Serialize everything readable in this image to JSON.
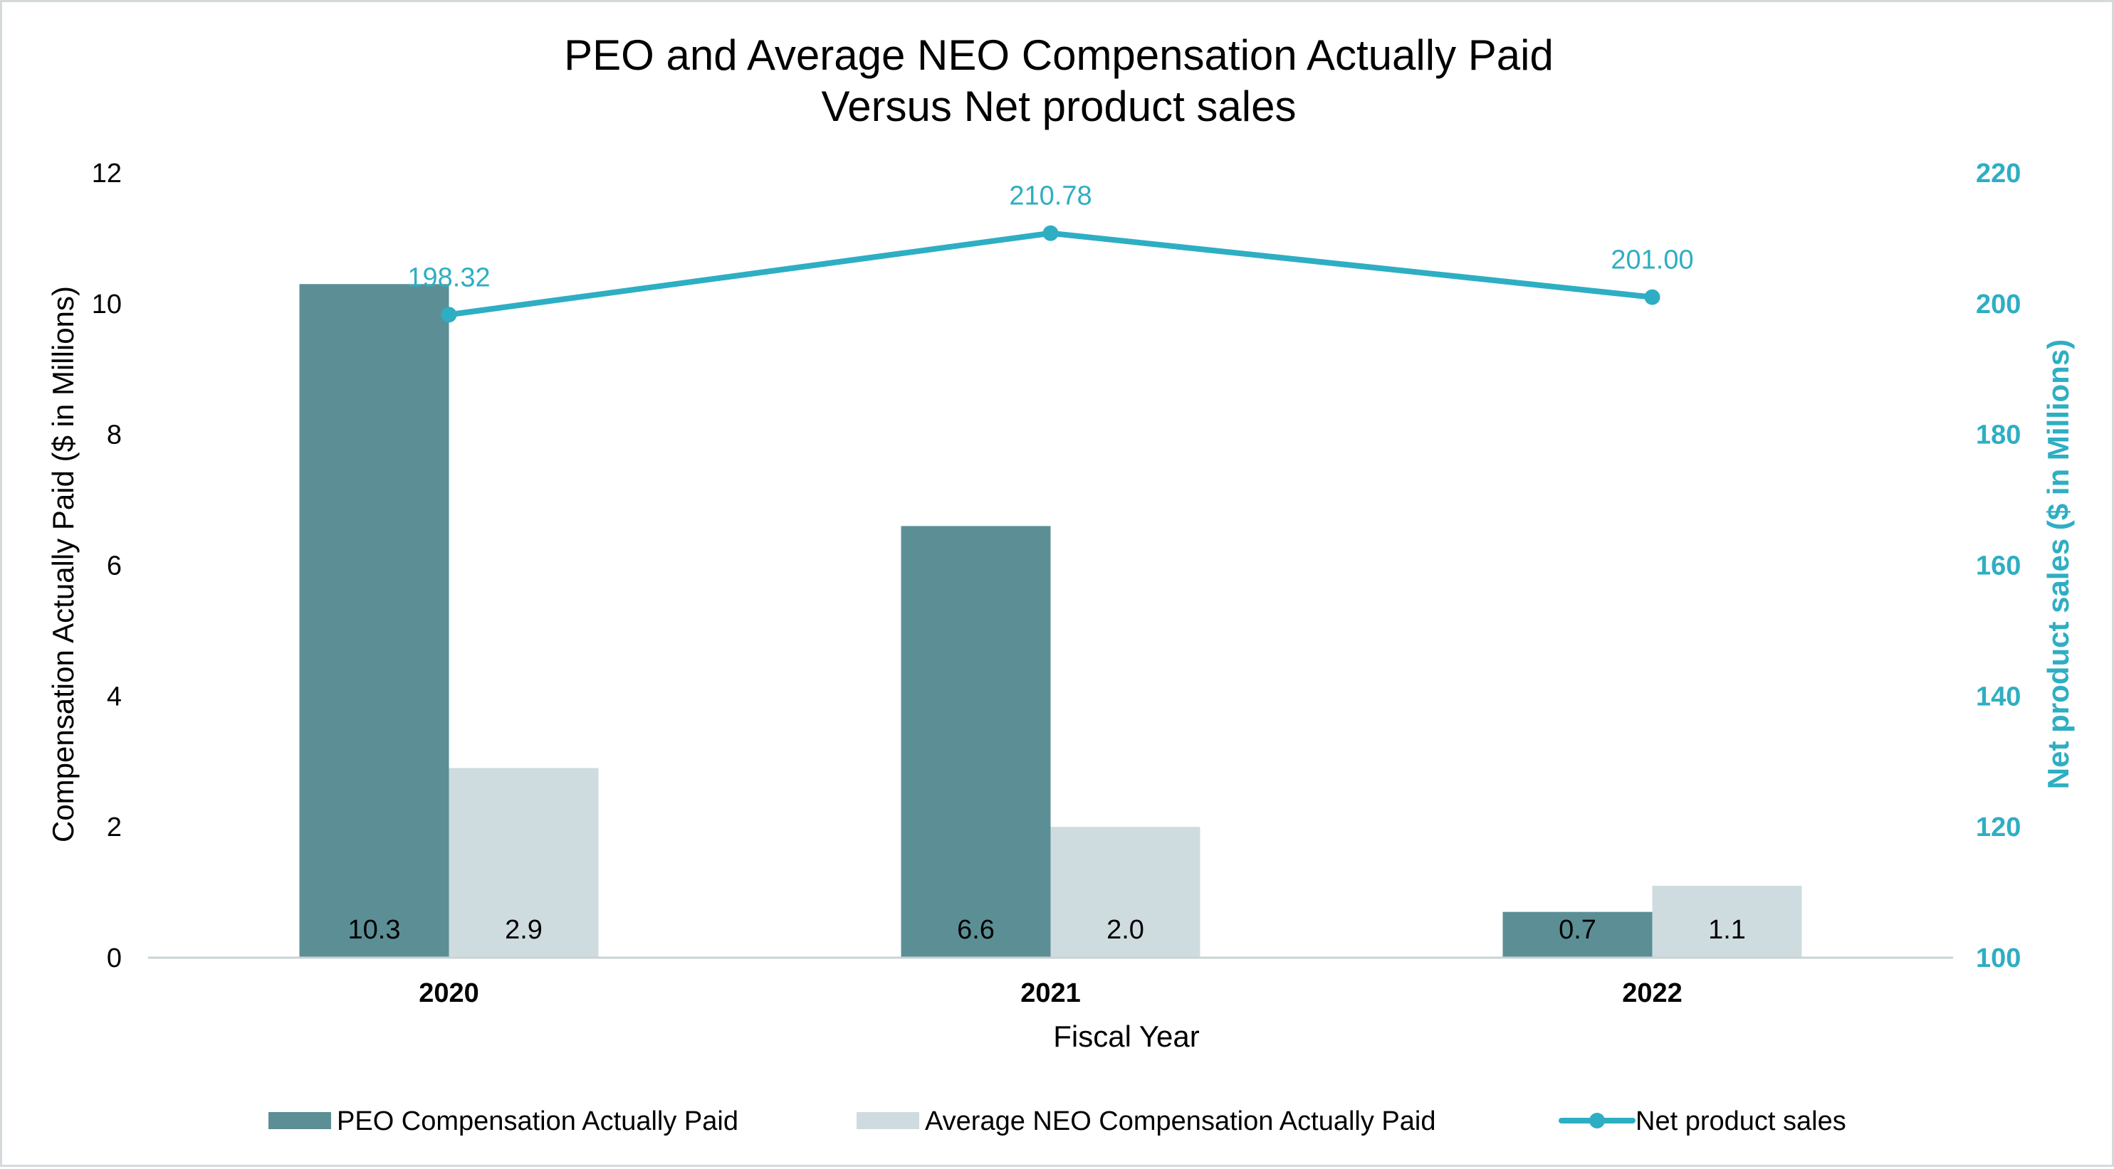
{
  "chart_data": {
    "type": "bar",
    "title_line1": "PEO and Average NEO Compensation Actually Paid",
    "title_line2": "Versus Net product sales",
    "categories": [
      "2020",
      "2021",
      "2022"
    ],
    "xlabel": "Fiscal Year",
    "ylabel": "Compensation Actually Paid ($ in Millions)",
    "ylabel_right": "Net product sales ($ in Millions)",
    "ylim": [
      0,
      12
    ],
    "yticks": [
      "0",
      "2",
      "4",
      "6",
      "8",
      "10",
      "12"
    ],
    "ylim_right": [
      100,
      220
    ],
    "yticks_right": [
      "100",
      "120",
      "140",
      "160",
      "180",
      "200",
      "220"
    ],
    "series": [
      {
        "name": "PEO Compensation Actually Paid",
        "kind": "bar",
        "axis": "left",
        "color": "#5b8f95",
        "values": [
          10.3,
          6.6,
          0.7
        ],
        "labels": [
          "10.3",
          "6.6",
          "0.7"
        ]
      },
      {
        "name": "Average NEO Compensation Actually Paid",
        "kind": "bar",
        "axis": "left",
        "color": "#cfdcdf",
        "values": [
          2.9,
          2.0,
          1.1
        ],
        "labels": [
          "2.9",
          "2.0",
          "1.1"
        ]
      },
      {
        "name": "Net product sales",
        "kind": "line",
        "axis": "right",
        "color": "#2eaec3",
        "values": [
          198.32,
          210.78,
          201.0
        ],
        "labels": [
          "198.32",
          "210.78",
          "201.00"
        ]
      }
    ],
    "grid": false,
    "legend_position": "bottom"
  },
  "colors": {
    "accent": "#2eaec3",
    "baseline": "#c9d3d6",
    "border": "#d5d9dc"
  }
}
